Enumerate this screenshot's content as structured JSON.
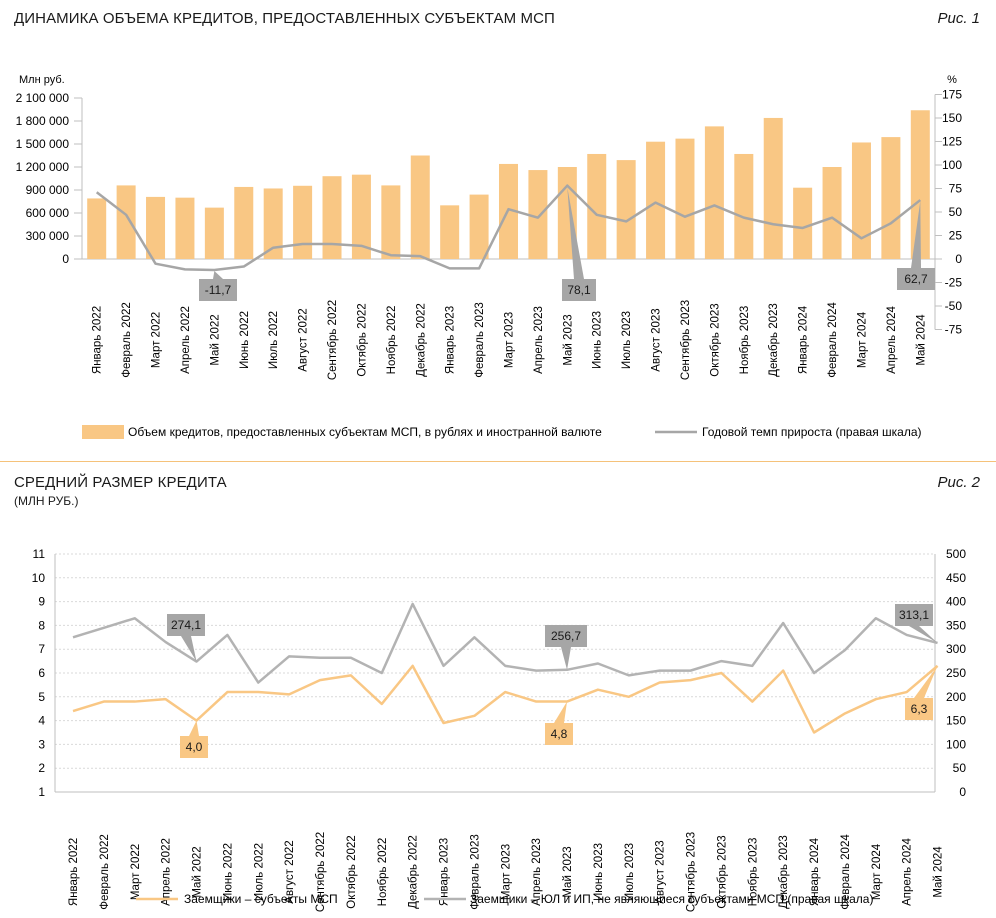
{
  "fig1": {
    "title": "ДИНАМИКА ОБЪЕМА КРЕДИТОВ, ПРЕДОСТАВЛЕННЫХ СУБЪЕКТАМ МСП",
    "figno": "Рис. 1",
    "colors": {
      "bar": "#f9c784",
      "line": "#a6a6a6",
      "callout": "#a6a6a6"
    }
  },
  "fig2": {
    "title": "СРЕДНИЙ РАЗМЕР КРЕДИТА",
    "subtitle": "(МЛН РУБ.)",
    "figno": "Рис. 2",
    "colors": {
      "line1": "#f9c784",
      "line2": "#b3b3b3",
      "callout1": "#f9c784",
      "callout2": "#a6a6a6"
    }
  },
  "chart_data": [
    {
      "type": "bar",
      "ylabel": "Млн руб.",
      "ylabel_right": "%",
      "ylim": [
        0,
        2100000
      ],
      "yticks": [
        "2 100 000",
        "1 800 000",
        "1 500 000",
        "1 200 000",
        "900 000",
        "600 000",
        "300 000",
        "0"
      ],
      "ylim_right": [
        -75,
        175
      ],
      "yticks_right": [
        "175",
        "150",
        "125",
        "100",
        "75",
        "50",
        "25",
        "0",
        "-25",
        "-50",
        "-75"
      ],
      "categories": [
        "Январь 2022",
        "Февраль 2022",
        "Март 2022",
        "Апрель 2022",
        "Май 2022",
        "Июнь 2022",
        "Июль 2022",
        "Август 2022",
        "Сентябрь 2022",
        "Октябрь 2022",
        "Ноябрь 2022",
        "Декабрь 2022",
        "Январь 2023",
        "Февраль 2023",
        "Март 2023",
        "Апрель 2023",
        "Май 2023",
        "Июнь 2023",
        "Июль 2023",
        "Август 2023",
        "Сентябрь 2023",
        "Октябрь 2023",
        "Ноябрь 2023",
        "Декабрь 2023",
        "Январь 2024",
        "Февраль 2024",
        "Март 2024",
        "Апрель 2024",
        "Май 2024"
      ],
      "series": [
        {
          "name": "Объем кредитов, предоставленных субъектам МСП, в рублях и иностранной валюте",
          "type": "bar",
          "axis": "left",
          "values": [
            790000,
            960000,
            810000,
            800000,
            670000,
            940000,
            920000,
            955000,
            1080000,
            1100000,
            960000,
            1350000,
            700000,
            840000,
            1240000,
            1160000,
            1200000,
            1370000,
            1290000,
            1530000,
            1570000,
            1730000,
            1370000,
            1840000,
            930000,
            1200000,
            1520000,
            1590000,
            1940000
          ]
        },
        {
          "name": "Годовой темп прироста (правая шкала)",
          "type": "line",
          "axis": "right",
          "values": [
            71,
            47,
            -5,
            -11,
            -11.7,
            -8,
            12,
            16,
            16,
            14,
            4,
            3,
            -10,
            -10,
            53,
            44,
            78.1,
            47,
            40,
            60,
            45,
            57,
            44,
            37,
            33,
            44,
            22,
            38,
            62.7
          ]
        }
      ],
      "callouts": [
        {
          "index": 4,
          "text": "-11,7"
        },
        {
          "index": 16,
          "text": "78,1"
        },
        {
          "index": 28,
          "text": "62,7"
        }
      ]
    },
    {
      "type": "line",
      "ylim": [
        1,
        11
      ],
      "yticks": [
        "11",
        "10",
        "9",
        "8",
        "7",
        "6",
        "5",
        "4",
        "3",
        "2",
        "1"
      ],
      "ylim_right": [
        0,
        500
      ],
      "yticks_right": [
        "500",
        "450",
        "400",
        "350",
        "300",
        "250",
        "200",
        "150",
        "100",
        "50",
        "0"
      ],
      "categories": [
        "Январь 2022",
        "Февраль 2022",
        "Март 2022",
        "Апрель 2022",
        "Май 2022",
        "Июнь 2022",
        "Июль 2022",
        "Август 2022",
        "Сентябрь 2022",
        "Октябрь 2022",
        "Ноябрь 2022",
        "Декабрь 2022",
        "Январь 2023",
        "Февраль 2023",
        "Март 2023",
        "Апрель 2023",
        "Май 2023",
        "Июнь 2023",
        "Июль 2023",
        "Август 2023",
        "Сентябрь 2023",
        "Октябрь 2023",
        "Ноябрь 2023",
        "Декабрь 2023",
        "Январь 2024",
        "Февраль 2024",
        "Март 2024",
        "Апрель 2024",
        "Май 2024"
      ],
      "series": [
        {
          "name": "Заемщики – субъекты МСП",
          "axis": "left",
          "values": [
            4.4,
            4.8,
            4.8,
            4.9,
            4.0,
            5.2,
            5.2,
            5.1,
            5.7,
            5.9,
            4.7,
            6.3,
            3.9,
            4.2,
            5.2,
            4.8,
            4.8,
            5.3,
            5.0,
            5.6,
            5.7,
            6.0,
            4.8,
            6.1,
            3.5,
            4.3,
            4.9,
            5.2,
            6.3
          ]
        },
        {
          "name": "Заемщики – ЮЛ и ИП, не являющиеся субъектами МСП (правая шкала)",
          "axis": "right",
          "values": [
            325,
            345,
            365,
            315,
            274.1,
            330,
            230,
            285,
            282,
            282,
            250,
            395,
            265,
            325,
            265,
            255,
            256.7,
            270,
            245,
            255,
            255,
            275,
            265,
            355,
            250,
            298,
            365,
            330,
            313.1
          ]
        }
      ],
      "callouts": [
        {
          "series": 1,
          "index": 4,
          "text": "274,1"
        },
        {
          "series": 1,
          "index": 16,
          "text": "256,7"
        },
        {
          "series": 1,
          "index": 28,
          "text": "313,1"
        },
        {
          "series": 0,
          "index": 4,
          "text": "4,0"
        },
        {
          "series": 0,
          "index": 16,
          "text": "4,8"
        },
        {
          "series": 0,
          "index": 28,
          "text": "6,3"
        }
      ]
    }
  ]
}
